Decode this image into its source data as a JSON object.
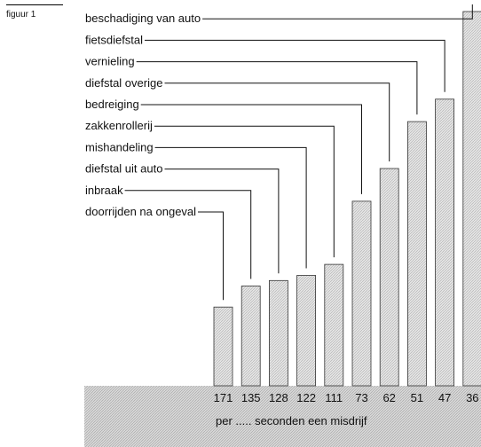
{
  "figure_label": "figuur 1",
  "chart_data": {
    "type": "bar",
    "categories": [
      "doorrijden na ongeval",
      "inbraak",
      "diefstal uit auto",
      "mishandeling",
      "zakkenrollerij",
      "bedreiging",
      "diefstal overige",
      "vernieling",
      "fietsdiefstal",
      "beschadiging van auto"
    ],
    "values": [
      171,
      135,
      128,
      122,
      111,
      73,
      62,
      51,
      47,
      36
    ],
    "value_labels": [
      "171",
      "135",
      "128",
      "122",
      "111",
      "73",
      "62",
      "51",
      "47",
      "36"
    ],
    "xlabel": "per ..... seconden een misdrijf",
    "title": "",
    "ylabel": ""
  }
}
